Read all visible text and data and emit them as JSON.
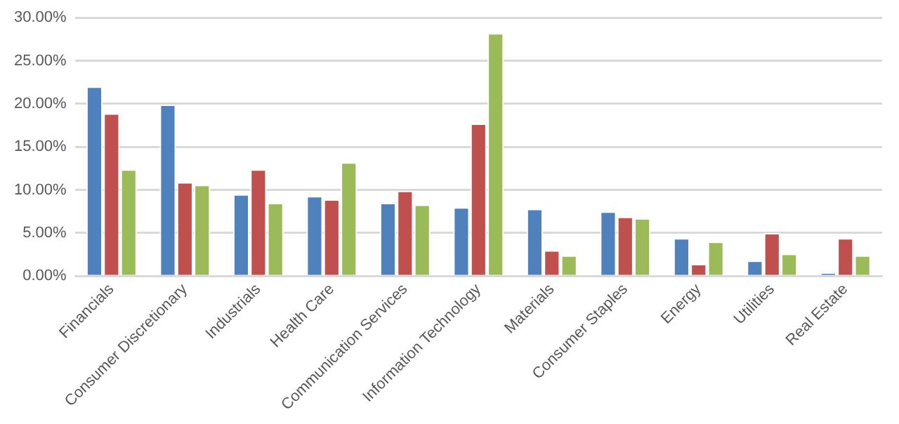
{
  "chart_data": {
    "type": "bar",
    "categories": [
      "Financials",
      "Consumer Discretionary",
      "Industrials",
      "Health Care",
      "Communication Services",
      "Information Technology",
      "Materials",
      "Consumer Staples",
      "Energy",
      "Utilities",
      "Real Estate"
    ],
    "series": [
      {
        "color": "#4f81bd",
        "values": [
          22.0,
          19.9,
          9.5,
          9.3,
          8.5,
          8.0,
          7.8,
          7.5,
          4.4,
          1.8,
          0.4
        ]
      },
      {
        "color": "#c0504d",
        "values": [
          18.9,
          10.9,
          12.4,
          8.9,
          9.9,
          17.7,
          3.0,
          6.9,
          1.4,
          5.0,
          4.4
        ]
      },
      {
        "color": "#9bbb59",
        "values": [
          12.4,
          10.6,
          8.5,
          13.2,
          8.3,
          28.2,
          2.4,
          6.7,
          4.0,
          2.6,
          2.4
        ]
      }
    ],
    "ylim": [
      0,
      30
    ],
    "yticks": [
      {
        "value": 0,
        "label": "0.00%"
      },
      {
        "value": 5,
        "label": "5.00%"
      },
      {
        "value": 10,
        "label": "10.00%"
      },
      {
        "value": 15,
        "label": "15.00%"
      },
      {
        "value": 20,
        "label": "20.00%"
      },
      {
        "value": 25,
        "label": "25.00%"
      },
      {
        "value": 30,
        "label": "30.00%"
      }
    ],
    "grid": "y",
    "legend": false
  }
}
